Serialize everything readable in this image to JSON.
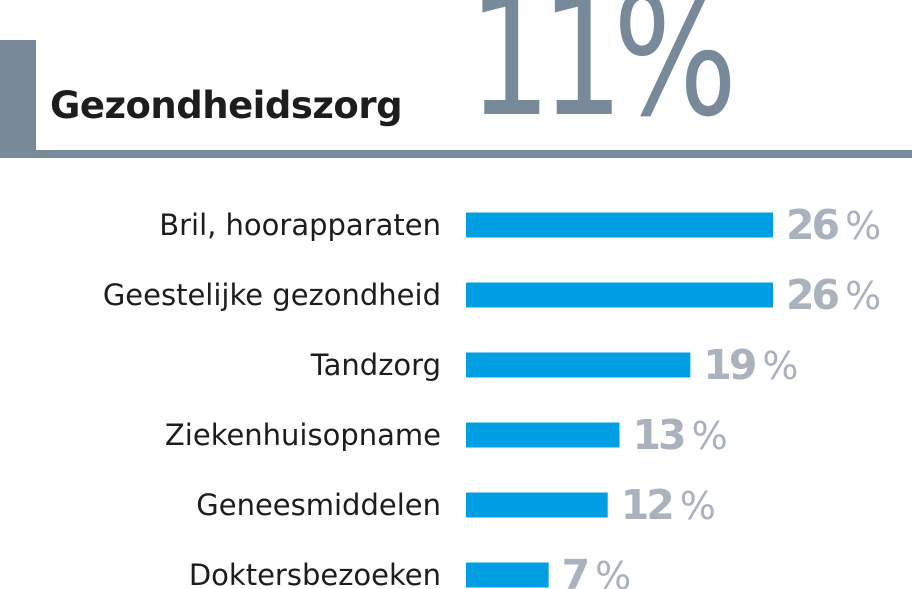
{
  "header": {
    "title": "Gezondheidszorg",
    "big_percent": "11%"
  },
  "chart_data": {
    "type": "bar",
    "orientation": "horizontal",
    "categories": [
      "Bril, hoorapparaten",
      "Geestelijke gezondheid",
      "Tandzorg",
      "Ziekenhuisopname",
      "Geneesmiddelen",
      "Doktersbezoeken"
    ],
    "values": [
      26,
      26,
      19,
      13,
      12,
      7
    ],
    "value_labels": [
      "26",
      "26",
      "19",
      "13",
      "12",
      "7"
    ],
    "value_suffix": "%",
    "title": "",
    "xlabel": "",
    "ylabel": "",
    "grid": false,
    "legend": "none",
    "colors": {
      "bar": "#009fe3",
      "value_text": "#a9b2bd",
      "accent": "#78899a"
    }
  }
}
